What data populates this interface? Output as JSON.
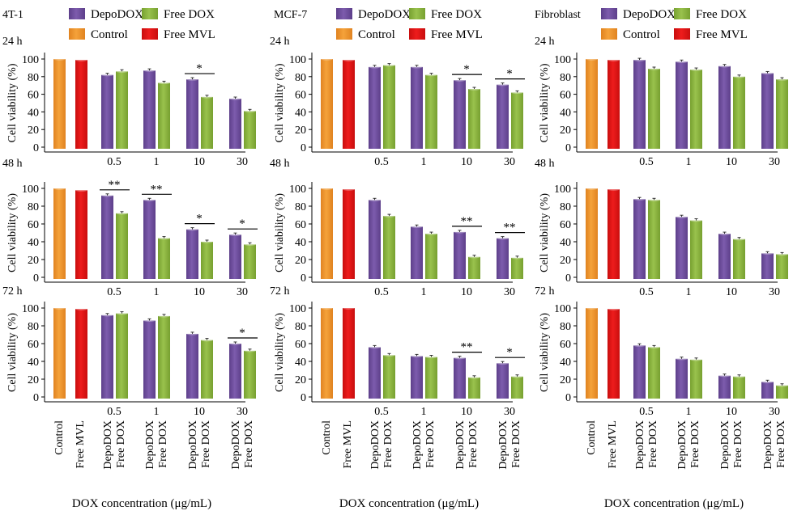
{
  "figure": {
    "colors": {
      "depodox": "#7d5cad",
      "free_dox": "#99c24d",
      "control": "#f5a23a",
      "free_mvl": "#ee1c1c"
    },
    "legend": [
      "DepoDOX",
      "Free DOX",
      "Control",
      "Free MVL"
    ],
    "ylabel": "Cell viability (%)",
    "xlabel": "DOX concentration (μg/mL)",
    "concentrations": [
      "0.5",
      "1",
      "10",
      "30"
    ],
    "x_group_labels": [
      "Control",
      "Free MVL",
      "DepoDOX",
      "Free DOX"
    ],
    "time_labels": [
      "24 h",
      "48 h",
      "72 h"
    ]
  },
  "chart_data": [
    {
      "type": "bar",
      "cell_line": "4T-1",
      "time": "24 h",
      "ylim": [
        0,
        100
      ],
      "yticks": [
        0,
        20,
        40,
        60,
        80,
        100
      ],
      "categories": [
        "0.5",
        "1",
        "10",
        "30"
      ],
      "control": 100,
      "free_mvl": 99,
      "series": [
        {
          "name": "DepoDOX",
          "values": [
            82,
            87,
            77,
            55
          ]
        },
        {
          "name": "Free DOX",
          "values": [
            86,
            73,
            57,
            41
          ]
        }
      ],
      "significance": [
        {
          "category": "10",
          "label": "*"
        }
      ]
    },
    {
      "type": "bar",
      "cell_line": "MCF-7",
      "time": "24 h",
      "ylim": [
        0,
        100
      ],
      "yticks": [
        0,
        20,
        40,
        60,
        80,
        100
      ],
      "categories": [
        "0.5",
        "1",
        "10",
        "30"
      ],
      "control": 100,
      "free_mvl": 99,
      "series": [
        {
          "name": "DepoDOX",
          "values": [
            91,
            91,
            76,
            71
          ]
        },
        {
          "name": "Free DOX",
          "values": [
            93,
            82,
            66,
            62
          ]
        }
      ],
      "significance": [
        {
          "category": "10",
          "label": "*"
        },
        {
          "category": "30",
          "label": "*"
        }
      ]
    },
    {
      "type": "bar",
      "cell_line": "Fibroblast",
      "time": "24 h",
      "ylim": [
        0,
        100
      ],
      "yticks": [
        0,
        20,
        40,
        60,
        80,
        100
      ],
      "categories": [
        "0.5",
        "1",
        "10",
        "30"
      ],
      "control": 100,
      "free_mvl": 99,
      "series": [
        {
          "name": "DepoDOX",
          "values": [
            99,
            97,
            92,
            84
          ]
        },
        {
          "name": "Free DOX",
          "values": [
            89,
            88,
            80,
            77
          ]
        }
      ],
      "significance": []
    },
    {
      "type": "bar",
      "cell_line": "4T-1",
      "time": "48 h",
      "ylim": [
        0,
        100
      ],
      "yticks": [
        0,
        20,
        40,
        60,
        80,
        100
      ],
      "categories": [
        "0.5",
        "1",
        "10",
        "30"
      ],
      "control": 100,
      "free_mvl": 98,
      "series": [
        {
          "name": "DepoDOX",
          "values": [
            92,
            87,
            54,
            48
          ]
        },
        {
          "name": "Free DOX",
          "values": [
            72,
            44,
            40,
            37
          ]
        }
      ],
      "significance": [
        {
          "category": "0.5",
          "label": "**"
        },
        {
          "category": "1",
          "label": "**"
        },
        {
          "category": "10",
          "label": "*"
        },
        {
          "category": "30",
          "label": "*"
        }
      ]
    },
    {
      "type": "bar",
      "cell_line": "MCF-7",
      "time": "48 h",
      "ylim": [
        0,
        100
      ],
      "yticks": [
        0,
        20,
        40,
        60,
        80,
        100
      ],
      "categories": [
        "0.5",
        "1",
        "10",
        "30"
      ],
      "control": 100,
      "free_mvl": 99,
      "series": [
        {
          "name": "DepoDOX",
          "values": [
            87,
            57,
            51,
            44
          ]
        },
        {
          "name": "Free DOX",
          "values": [
            69,
            49,
            23,
            22
          ]
        }
      ],
      "significance": [
        {
          "category": "10",
          "label": "**"
        },
        {
          "category": "30",
          "label": "**"
        }
      ]
    },
    {
      "type": "bar",
      "cell_line": "Fibroblast",
      "time": "48 h",
      "ylim": [
        0,
        100
      ],
      "yticks": [
        0,
        20,
        40,
        60,
        80,
        100
      ],
      "categories": [
        "0.5",
        "1",
        "10",
        "30"
      ],
      "control": 100,
      "free_mvl": 99,
      "series": [
        {
          "name": "DepoDOX",
          "values": [
            88,
            68,
            49,
            27
          ]
        },
        {
          "name": "Free DOX",
          "values": [
            87,
            64,
            43,
            26
          ]
        }
      ],
      "significance": []
    },
    {
      "type": "bar",
      "cell_line": "4T-1",
      "time": "72 h",
      "ylim": [
        0,
        100
      ],
      "yticks": [
        0,
        20,
        40,
        60,
        80,
        100
      ],
      "categories": [
        "0.5",
        "1",
        "10",
        "30"
      ],
      "control": 100,
      "free_mvl": 99,
      "series": [
        {
          "name": "DepoDOX",
          "values": [
            92,
            86,
            71,
            60
          ]
        },
        {
          "name": "Free DOX",
          "values": [
            94,
            91,
            64,
            52
          ]
        }
      ],
      "significance": [
        {
          "category": "30",
          "label": "*"
        }
      ]
    },
    {
      "type": "bar",
      "cell_line": "MCF-7",
      "time": "72 h",
      "ylim": [
        0,
        100
      ],
      "yticks": [
        0,
        20,
        40,
        60,
        80,
        100
      ],
      "categories": [
        "0.5",
        "1",
        "10",
        "30"
      ],
      "control": 100,
      "free_mvl": 100,
      "series": [
        {
          "name": "DepoDOX",
          "values": [
            56,
            46,
            44,
            38
          ]
        },
        {
          "name": "Free DOX",
          "values": [
            47,
            45,
            22,
            23
          ]
        }
      ],
      "significance": [
        {
          "category": "10",
          "label": "**"
        },
        {
          "category": "30",
          "label": "*"
        }
      ]
    },
    {
      "type": "bar",
      "cell_line": "Fibroblast",
      "time": "72 h",
      "ylim": [
        0,
        100
      ],
      "yticks": [
        0,
        20,
        40,
        60,
        80,
        100
      ],
      "categories": [
        "0.5",
        "1",
        "10",
        "30"
      ],
      "control": 100,
      "free_mvl": 99,
      "series": [
        {
          "name": "DepoDOX",
          "values": [
            58,
            43,
            24,
            17
          ]
        },
        {
          "name": "Free DOX",
          "values": [
            56,
            42,
            23,
            13
          ]
        }
      ],
      "significance": []
    }
  ]
}
